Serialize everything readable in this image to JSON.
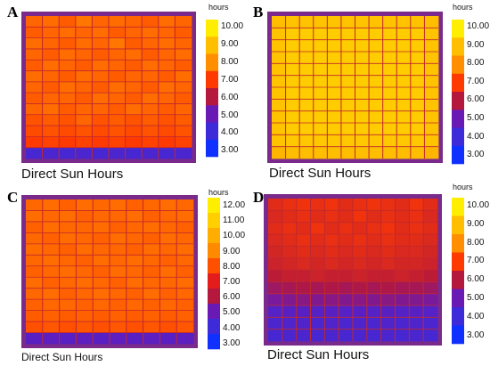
{
  "chart_data": [
    {
      "type": "heatmap",
      "panel_label": "A",
      "title": "Direct Sun Hours",
      "legend_unit": "hours",
      "legend_ticks": [
        "10.00",
        "9.00",
        "8.00",
        "7.00",
        "6.00",
        "5.00",
        "4.00",
        "3.00"
      ],
      "legend_colors": [
        "#ffee00",
        "#ffbe00",
        "#ff8f00",
        "#ff3a00",
        "#b4183d",
        "#6a1ab4",
        "#3d2ad8",
        "#1030ff"
      ],
      "range": [
        3,
        10
      ],
      "grid_rows": 13,
      "grid_cols": 10,
      "values": [
        [
          7.5,
          7.6,
          7.4,
          7.7,
          7.5,
          7.6,
          7.5,
          7.4,
          7.6,
          7.5
        ],
        [
          7.4,
          7.5,
          7.6,
          7.5,
          7.6,
          7.4,
          7.5,
          7.6,
          7.5,
          7.4
        ],
        [
          7.6,
          7.5,
          7.4,
          7.6,
          7.5,
          7.7,
          7.4,
          7.5,
          7.6,
          7.5
        ],
        [
          7.5,
          7.4,
          7.6,
          7.5,
          7.4,
          7.5,
          7.6,
          7.4,
          7.5,
          7.6
        ],
        [
          7.4,
          7.6,
          7.5,
          7.4,
          7.6,
          7.5,
          7.4,
          7.6,
          7.5,
          7.4
        ],
        [
          7.6,
          7.5,
          7.4,
          7.6,
          7.5,
          7.4,
          7.5,
          7.5,
          7.4,
          7.6
        ],
        [
          7.5,
          7.4,
          7.6,
          7.5,
          7.4,
          7.6,
          7.5,
          7.4,
          7.6,
          7.5
        ],
        [
          7.4,
          7.5,
          7.5,
          7.4,
          7.6,
          7.5,
          7.4,
          7.6,
          7.5,
          7.4
        ],
        [
          7.5,
          7.6,
          7.4,
          7.5,
          7.5,
          7.4,
          7.6,
          7.5,
          7.4,
          7.5
        ],
        [
          7.3,
          7.4,
          7.3,
          7.5,
          7.3,
          7.4,
          7.3,
          7.4,
          7.3,
          7.4
        ],
        [
          7.2,
          7.3,
          7.2,
          7.3,
          7.2,
          7.3,
          7.2,
          7.3,
          7.2,
          7.3
        ],
        [
          7.0,
          7.1,
          7.0,
          7.1,
          7.0,
          7.1,
          7.0,
          7.1,
          7.0,
          7.1
        ],
        [
          4.2,
          4.3,
          4.2,
          4.3,
          4.2,
          4.3,
          4.2,
          4.3,
          4.2,
          4.3
        ]
      ]
    },
    {
      "type": "heatmap",
      "panel_label": "B",
      "title": "Direct Sun Hours",
      "legend_unit": "hours",
      "legend_ticks": [
        "10.00",
        "9.00",
        "8.00",
        "7.00",
        "6.00",
        "5.00",
        "4.00",
        "3.00"
      ],
      "legend_colors": [
        "#ffee00",
        "#ffbe00",
        "#ff8f00",
        "#ff3a00",
        "#b4183d",
        "#6a1ab4",
        "#3d2ad8",
        "#1030ff"
      ],
      "range": [
        3,
        10
      ],
      "grid_rows": 12,
      "grid_cols": 12,
      "values": [
        [
          9.0,
          9.1,
          9.1,
          9.1,
          9.1,
          9.1,
          9.1,
          9.1,
          9.1,
          9.1,
          9.1,
          9.0
        ],
        [
          9.1,
          9.3,
          9.3,
          9.3,
          9.3,
          9.3,
          9.3,
          9.3,
          9.3,
          9.3,
          9.3,
          9.1
        ],
        [
          9.1,
          9.3,
          9.3,
          9.3,
          9.3,
          9.3,
          9.3,
          9.3,
          9.3,
          9.3,
          9.3,
          9.1
        ],
        [
          9.1,
          9.3,
          9.3,
          9.3,
          9.3,
          9.3,
          9.3,
          9.3,
          9.3,
          9.3,
          9.3,
          9.1
        ],
        [
          9.1,
          9.3,
          9.3,
          9.3,
          9.3,
          9.3,
          9.3,
          9.3,
          9.3,
          9.3,
          9.3,
          9.1
        ],
        [
          9.1,
          9.3,
          9.3,
          9.3,
          9.3,
          9.3,
          9.3,
          9.3,
          9.3,
          9.3,
          9.3,
          9.1
        ],
        [
          9.1,
          9.3,
          9.3,
          9.3,
          9.3,
          9.3,
          9.3,
          9.3,
          9.3,
          9.3,
          9.3,
          9.1
        ],
        [
          9.1,
          9.3,
          9.3,
          9.3,
          9.3,
          9.3,
          9.3,
          9.3,
          9.3,
          9.3,
          9.3,
          9.1
        ],
        [
          9.1,
          9.3,
          9.3,
          9.3,
          9.3,
          9.3,
          9.3,
          9.3,
          9.3,
          9.3,
          9.3,
          9.1
        ],
        [
          9.1,
          9.3,
          9.3,
          9.3,
          9.3,
          9.3,
          9.3,
          9.3,
          9.3,
          9.3,
          9.3,
          9.1
        ],
        [
          9.1,
          9.2,
          9.2,
          9.2,
          9.2,
          9.2,
          9.2,
          9.2,
          9.2,
          9.2,
          9.2,
          9.1
        ],
        [
          8.8,
          9.0,
          9.0,
          9.0,
          9.0,
          9.0,
          9.0,
          9.0,
          9.0,
          9.0,
          9.0,
          8.8
        ]
      ]
    },
    {
      "type": "heatmap",
      "panel_label": "C",
      "title": "Direct Sun Hours",
      "legend_unit": "hours",
      "legend_ticks": [
        "12.00",
        "11.00",
        "10.00",
        "9.00",
        "8.00",
        "7.00",
        "6.00",
        "5.00",
        "4.00",
        "3.00"
      ],
      "legend_colors": [
        "#ffee00",
        "#ffcf00",
        "#ffad00",
        "#ff8a00",
        "#ff5000",
        "#e51c1c",
        "#b4183d",
        "#6a1ab4",
        "#3d2ad8",
        "#1030ff"
      ],
      "range": [
        3,
        12
      ],
      "grid_rows": 13,
      "grid_cols": 10,
      "values": [
        [
          8.4,
          8.5,
          8.3,
          8.5,
          8.4,
          8.5,
          8.3,
          8.4,
          8.5,
          8.4
        ],
        [
          8.5,
          8.4,
          8.5,
          8.3,
          8.4,
          8.4,
          8.5,
          8.3,
          8.4,
          8.5
        ],
        [
          8.3,
          8.5,
          8.4,
          8.4,
          8.5,
          8.3,
          8.4,
          8.5,
          8.4,
          8.3
        ],
        [
          8.4,
          8.3,
          8.5,
          8.4,
          8.3,
          8.5,
          8.4,
          8.3,
          8.5,
          8.4
        ],
        [
          8.5,
          8.4,
          8.3,
          8.5,
          8.4,
          8.4,
          8.3,
          8.5,
          8.4,
          8.5
        ],
        [
          8.4,
          8.5,
          8.4,
          8.3,
          8.5,
          8.4,
          8.5,
          8.4,
          8.3,
          8.4
        ],
        [
          8.3,
          8.4,
          8.5,
          8.4,
          8.3,
          8.5,
          8.4,
          8.3,
          8.5,
          8.3
        ],
        [
          8.5,
          8.3,
          8.4,
          8.5,
          8.4,
          8.3,
          8.5,
          8.4,
          8.4,
          8.5
        ],
        [
          8.4,
          8.5,
          8.3,
          8.4,
          8.5,
          8.4,
          8.3,
          8.5,
          8.3,
          8.4
        ],
        [
          8.3,
          8.4,
          8.4,
          8.3,
          8.4,
          8.3,
          8.4,
          8.3,
          8.4,
          8.3
        ],
        [
          8.2,
          8.3,
          8.2,
          8.3,
          8.2,
          8.3,
          8.2,
          8.3,
          8.2,
          8.3
        ],
        [
          8.0,
          8.1,
          8.0,
          8.1,
          8.0,
          8.1,
          8.0,
          8.1,
          8.0,
          8.1
        ],
        [
          4.6,
          4.7,
          4.6,
          4.7,
          4.6,
          4.7,
          4.6,
          4.7,
          4.6,
          4.7
        ]
      ]
    },
    {
      "type": "heatmap",
      "panel_label": "D",
      "title": "Direct Sun Hours",
      "legend_unit": "hours",
      "legend_ticks": [
        "10.00",
        "9.00",
        "8.00",
        "7.00",
        "6.00",
        "5.00",
        "4.00",
        "3.00"
      ],
      "legend_colors": [
        "#ffee00",
        "#ffbe00",
        "#ff8f00",
        "#ff3a00",
        "#b4183d",
        "#6a1ab4",
        "#3d2ad8",
        "#1030ff"
      ],
      "range": [
        3,
        10
      ],
      "grid_rows": 12,
      "grid_cols": 12,
      "values": [
        [
          6.6,
          6.7,
          6.8,
          6.7,
          6.8,
          6.6,
          6.7,
          6.8,
          6.7,
          6.6,
          6.8,
          6.6
        ],
        [
          6.5,
          6.6,
          6.7,
          6.6,
          6.7,
          6.6,
          6.8,
          6.6,
          6.7,
          6.6,
          6.7,
          6.5
        ],
        [
          6.6,
          6.7,
          6.6,
          6.8,
          6.6,
          6.7,
          6.6,
          6.7,
          6.8,
          6.6,
          6.7,
          6.6
        ],
        [
          6.5,
          6.6,
          6.7,
          6.6,
          6.7,
          6.6,
          6.7,
          6.6,
          6.7,
          6.6,
          6.6,
          6.5
        ],
        [
          6.4,
          6.5,
          6.6,
          6.5,
          6.6,
          6.5,
          6.6,
          6.5,
          6.6,
          6.5,
          6.5,
          6.4
        ],
        [
          6.3,
          6.4,
          6.5,
          6.4,
          6.5,
          6.4,
          6.5,
          6.4,
          6.5,
          6.4,
          6.4,
          6.3
        ],
        [
          6.1,
          6.2,
          6.2,
          6.3,
          6.2,
          6.2,
          6.3,
          6.2,
          6.2,
          6.3,
          6.2,
          6.1
        ],
        [
          5.7,
          5.8,
          5.9,
          5.8,
          5.9,
          5.8,
          5.9,
          5.8,
          5.9,
          5.8,
          5.8,
          5.7
        ],
        [
          5.2,
          5.3,
          5.4,
          5.3,
          5.4,
          5.3,
          5.4,
          5.3,
          5.4,
          5.3,
          5.3,
          5.2
        ],
        [
          4.5,
          4.6,
          4.6,
          4.5,
          4.6,
          4.5,
          4.6,
          4.5,
          4.6,
          4.5,
          4.6,
          4.5
        ],
        [
          4.3,
          4.4,
          4.4,
          4.3,
          4.4,
          4.3,
          4.4,
          4.3,
          4.4,
          4.3,
          4.4,
          4.3
        ],
        [
          4.2,
          4.3,
          4.3,
          4.2,
          4.3,
          4.2,
          4.3,
          4.2,
          4.3,
          4.2,
          4.3,
          4.2
        ]
      ]
    }
  ]
}
